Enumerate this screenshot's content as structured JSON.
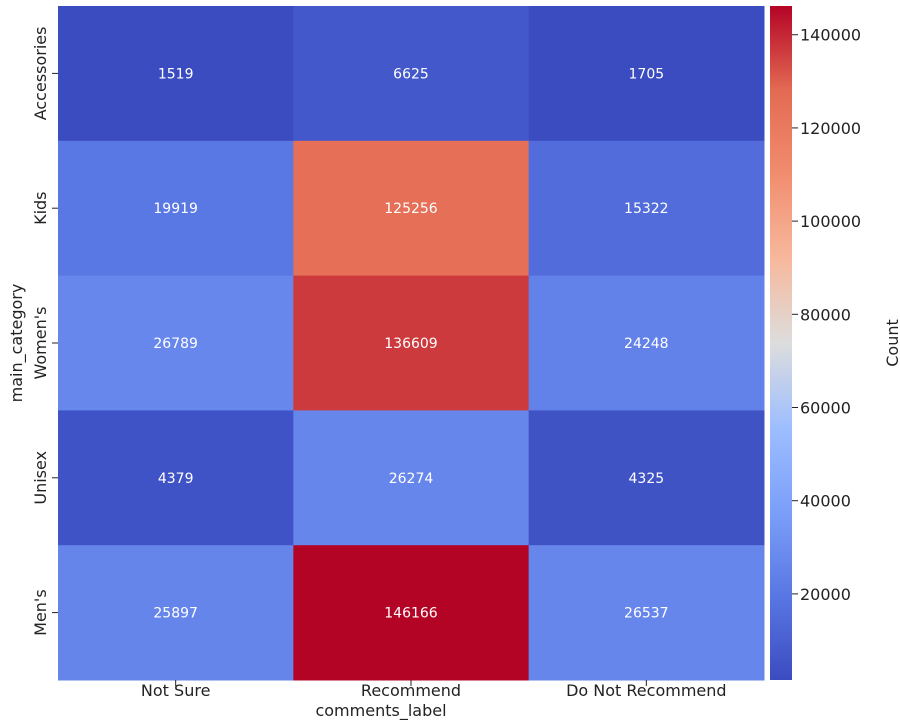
{
  "chart_data": {
    "type": "heatmap",
    "title": "",
    "xlabel": "comments_label",
    "ylabel": "main_category",
    "x_categories": [
      "Not Sure",
      "Recommend",
      "Do Not Recommend"
    ],
    "y_categories": [
      "Accessories",
      "Kids",
      "Women's",
      "Unisex",
      "Men's"
    ],
    "values": [
      [
        1519,
        6625,
        1705
      ],
      [
        19919,
        125256,
        15322
      ],
      [
        26789,
        136609,
        24248
      ],
      [
        4379,
        26274,
        4325
      ],
      [
        25897,
        146166,
        26537
      ]
    ],
    "colormap": "coolwarm",
    "colorbar": {
      "label": "Count",
      "range": [
        1519,
        146166
      ],
      "ticks": [
        20000,
        40000,
        60000,
        80000,
        100000,
        120000,
        140000
      ]
    }
  }
}
